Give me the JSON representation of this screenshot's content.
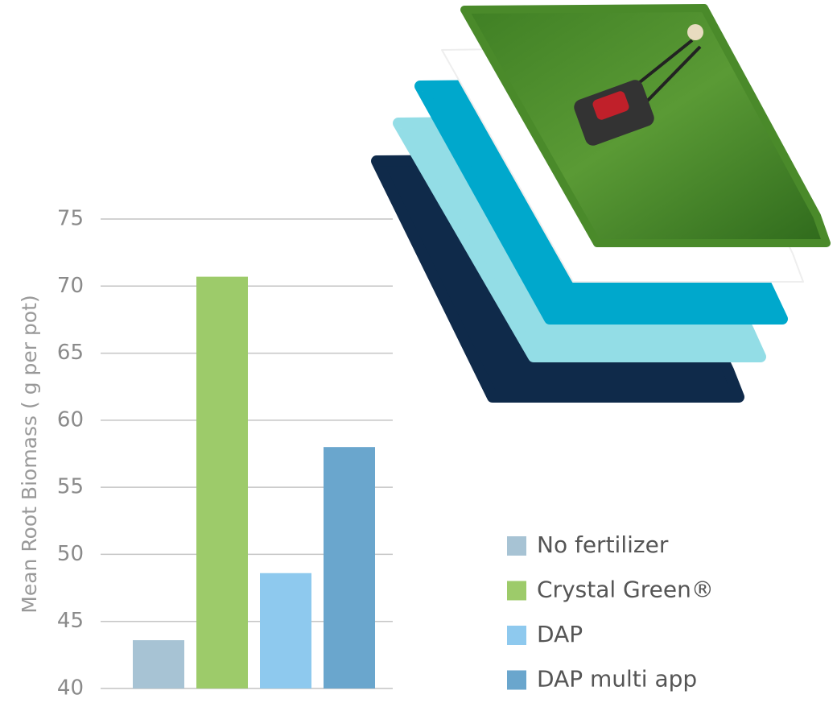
{
  "chart_data": {
    "type": "bar",
    "y_label": "Mean Root Biomass ( g per pot)",
    "categories": [
      "No fertilizer",
      "Crystal Green®",
      "DAP",
      "DAP multi app"
    ],
    "values": [
      43.6,
      70.7,
      48.6,
      58.0
    ],
    "colors": [
      "#a7c3d4",
      "#9dcb6a",
      "#8ec9ee",
      "#6aa6cd"
    ],
    "ylim": [
      40,
      75
    ],
    "yticks": [
      40,
      45,
      50,
      55,
      60,
      65,
      70,
      75
    ],
    "grid": true
  }
}
